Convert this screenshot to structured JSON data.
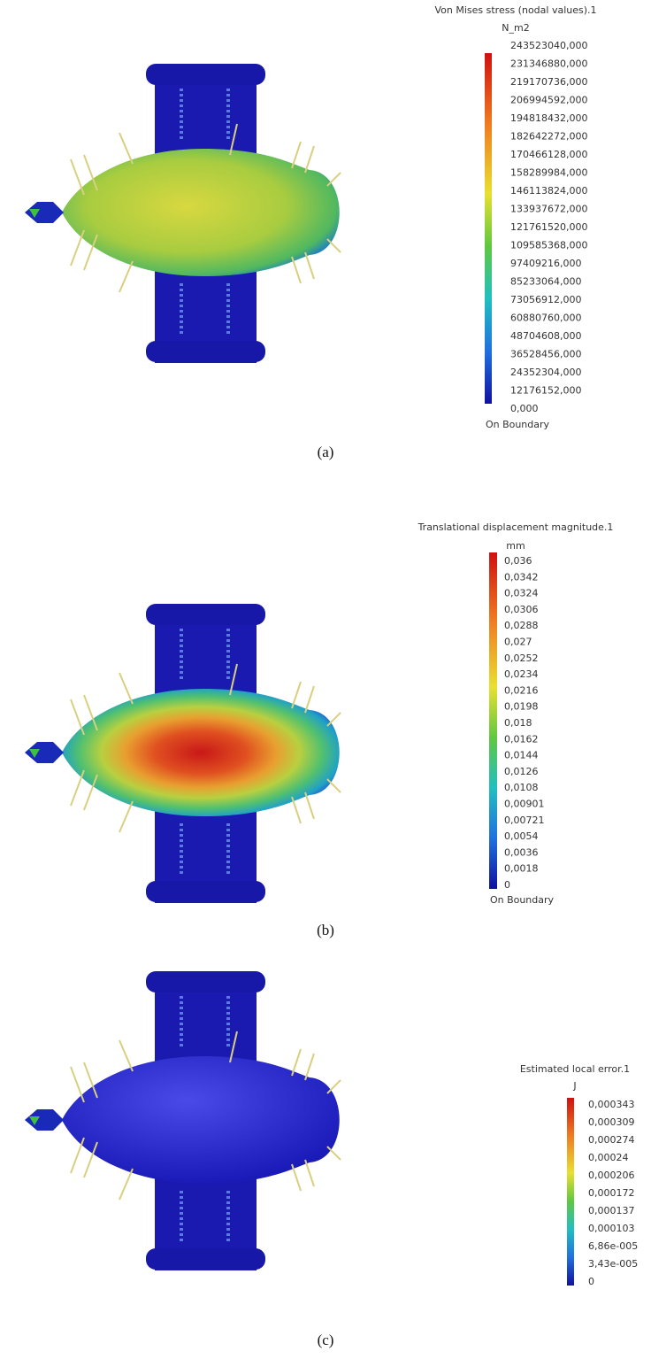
{
  "panels": [
    {
      "legend": {
        "title": "Von Mises stress (nodal values).1",
        "unit": "N_m2",
        "labels": [
          "243523040,000",
          "231346880,000",
          "219170736,000",
          "206994592,000",
          "194818432,000",
          "182642272,000",
          "170466128,000",
          "158289984,000",
          "146113824,000",
          "133937672,000",
          "121761520,000",
          "109585368,000",
          "97409216,000",
          "85233064,000",
          "73056912,000",
          "60880760,000",
          "48704608,000",
          "36528456,000",
          "24352304,000",
          "12176152,000",
          "0,000"
        ],
        "footer": "On Boundary"
      },
      "caption": "(a)"
    },
    {
      "legend": {
        "title": "Translational displacement magnitude.1",
        "unit": "mm",
        "labels": [
          "0,036",
          "0,0342",
          "0,0324",
          "0,0306",
          "0,0288",
          "0,027",
          "0,0252",
          "0,0234",
          "0,0216",
          "0,0198",
          "0,018",
          "0,0162",
          "0,0144",
          "0,0126",
          "0,0108",
          "0,00901",
          "0,00721",
          "0,0054",
          "0,0036",
          "0,0018",
          "0"
        ],
        "footer": "On Boundary"
      },
      "caption": "(b)"
    },
    {
      "legend": {
        "title": "Estimated local error.1",
        "unit": "J",
        "labels": [
          "0,000343",
          "0,000309",
          "0,000274",
          "0,00024",
          "0,000206",
          "0,000172",
          "0,000137",
          "0,000103",
          "6,86e-005",
          "3,43e-005",
          "0"
        ]
      },
      "caption": "(c)"
    }
  ]
}
